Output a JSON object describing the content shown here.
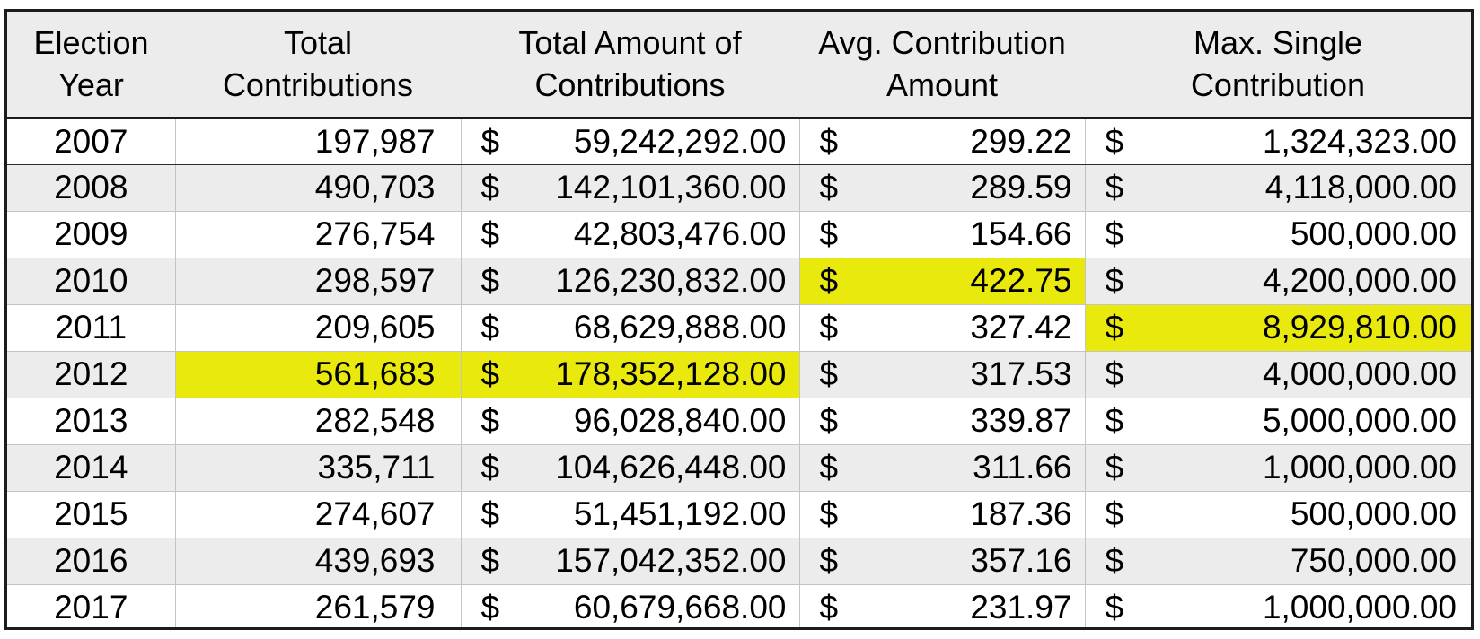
{
  "headers": [
    [
      "Election",
      "Year"
    ],
    [
      "Total",
      "Contributions"
    ],
    [
      "Total Amount of",
      "Contributions"
    ],
    [
      "Avg. Contribution",
      "Amount"
    ],
    [
      "Max. Single",
      "Contribution"
    ]
  ],
  "currency_symbol": "$",
  "highlight_color": "#e9e90d",
  "stripe_color": "#ececec",
  "rows": [
    {
      "year": "2007",
      "total_contributions": "197,987",
      "total_amount": "59,242,292.00",
      "avg_amount": "299.22",
      "max_single": "1,324,323.00"
    },
    {
      "year": "2008",
      "total_contributions": "490,703",
      "total_amount": "142,101,360.00",
      "avg_amount": "289.59",
      "max_single": "4,118,000.00"
    },
    {
      "year": "2009",
      "total_contributions": "276,754",
      "total_amount": "42,803,476.00",
      "avg_amount": "154.66",
      "max_single": "500,000.00"
    },
    {
      "year": "2010",
      "total_contributions": "298,597",
      "total_amount": "126,230,832.00",
      "avg_amount": "422.75",
      "max_single": "4,200,000.00"
    },
    {
      "year": "2011",
      "total_contributions": "209,605",
      "total_amount": "68,629,888.00",
      "avg_amount": "327.42",
      "max_single": "8,929,810.00"
    },
    {
      "year": "2012",
      "total_contributions": "561,683",
      "total_amount": "178,352,128.00",
      "avg_amount": "317.53",
      "max_single": "4,000,000.00"
    },
    {
      "year": "2013",
      "total_contributions": "282,548",
      "total_amount": "96,028,840.00",
      "avg_amount": "339.87",
      "max_single": "5,000,000.00"
    },
    {
      "year": "2014",
      "total_contributions": "335,711",
      "total_amount": "104,626,448.00",
      "avg_amount": "311.66",
      "max_single": "1,000,000.00"
    },
    {
      "year": "2015",
      "total_contributions": "274,607",
      "total_amount": "51,451,192.00",
      "avg_amount": "187.36",
      "max_single": "500,000.00"
    },
    {
      "year": "2016",
      "total_contributions": "439,693",
      "total_amount": "157,042,352.00",
      "avg_amount": "357.16",
      "max_single": "750,000.00"
    },
    {
      "year": "2017",
      "total_contributions": "261,579",
      "total_amount": "60,679,668.00",
      "avg_amount": "231.97",
      "max_single": "1,000,000.00"
    }
  ]
}
